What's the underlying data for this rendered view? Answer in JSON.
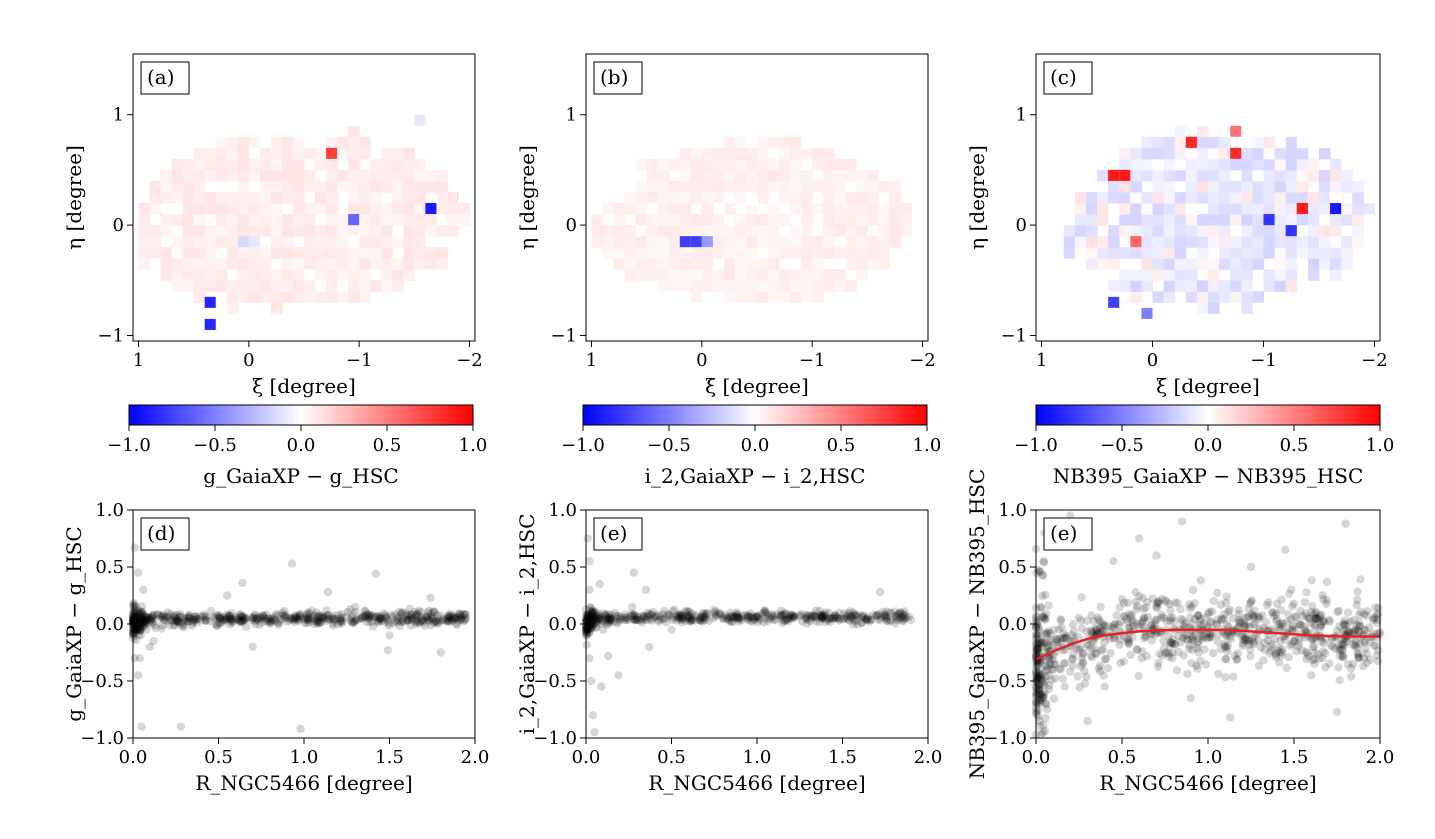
{
  "chart_data": [
    {
      "type": "heatmap",
      "panel_label": "(a)",
      "xlabel": "ξ [degree]",
      "ylabel": "η [degree]",
      "xlim": [
        1.05,
        -2.05
      ],
      "ylim": [
        -1.05,
        1.55
      ],
      "xticks": [
        "1",
        "0",
        "−1",
        "−2"
      ],
      "yticks": [
        "−1",
        "0",
        "1"
      ],
      "cell_size": 0.1,
      "background_tint": 0.07,
      "footprint": {
        "cx": -0.45,
        "cy": 0.05,
        "rx": 1.5,
        "ry": 0.8,
        "left_bulge": 0.3
      },
      "highlighted_cells": [
        {
          "xi": 0.35,
          "eta": -0.7,
          "value": -0.85
        },
        {
          "xi": 0.35,
          "eta": -0.9,
          "value": -0.85
        },
        {
          "xi": -0.75,
          "eta": 0.65,
          "value": 0.75
        },
        {
          "xi": -0.95,
          "eta": 0.05,
          "value": -0.6
        },
        {
          "xi": -1.65,
          "eta": 0.15,
          "value": -0.9
        },
        {
          "xi": 0.05,
          "eta": -0.15,
          "value": -0.15
        },
        {
          "xi": -0.05,
          "eta": -0.15,
          "value": -0.1
        },
        {
          "xi": -1.55,
          "eta": 0.95,
          "value": -0.1
        }
      ],
      "colorbar": {
        "label": "g_GaiaXP − g_HSC",
        "range": [
          -1.0,
          1.0
        ],
        "ticks": [
          "−1.0",
          "−0.5",
          "0.0",
          "0.5",
          "1.0"
        ]
      }
    },
    {
      "type": "heatmap",
      "panel_label": "(b)",
      "xlabel": "ξ [degree]",
      "ylabel": "η [degree]",
      "xlim": [
        1.05,
        -2.05
      ],
      "ylim": [
        -1.05,
        1.55
      ],
      "xticks": [
        "1",
        "0",
        "−1",
        "−2"
      ],
      "yticks": [
        "−1",
        "0",
        "1"
      ],
      "cell_size": 0.1,
      "background_tint": 0.06,
      "footprint": {
        "cx": -0.5,
        "cy": 0.05,
        "rx": 1.35,
        "ry": 0.75,
        "left_bulge": 0.25
      },
      "highlighted_cells": [
        {
          "xi": 0.15,
          "eta": -0.15,
          "value": -0.75
        },
        {
          "xi": 0.05,
          "eta": -0.15,
          "value": -0.75
        },
        {
          "xi": -0.05,
          "eta": -0.15,
          "value": -0.4
        }
      ],
      "colorbar": {
        "label": "i_2,GaiaXP − i_2,HSC",
        "range": [
          -1.0,
          1.0
        ],
        "ticks": [
          "−1.0",
          "−0.5",
          "0.0",
          "0.5",
          "1.0"
        ]
      }
    },
    {
      "type": "heatmap",
      "panel_label": "(c)",
      "xlabel": "ξ [degree]",
      "ylabel": "η [degree]",
      "xlim": [
        1.05,
        -2.05
      ],
      "ylim": [
        -1.05,
        1.55
      ],
      "xticks": [
        "1",
        "0",
        "−1",
        "−2"
      ],
      "yticks": [
        "−1",
        "0",
        "1"
      ],
      "cell_size": 0.1,
      "background_tint": -0.12,
      "footprint": {
        "cx": -0.6,
        "cy": 0.05,
        "rx": 1.35,
        "ry": 0.8,
        "left_bulge": 0.1
      },
      "highlighted_cells": [
        {
          "xi": 0.35,
          "eta": 0.45,
          "value": 0.9
        },
        {
          "xi": 0.25,
          "eta": 0.45,
          "value": 0.9
        },
        {
          "xi": -0.35,
          "eta": 0.75,
          "value": 0.85
        },
        {
          "xi": -0.75,
          "eta": 0.65,
          "value": 0.85
        },
        {
          "xi": -1.35,
          "eta": 0.15,
          "value": 0.9
        },
        {
          "xi": -1.65,
          "eta": 0.15,
          "value": -0.9
        },
        {
          "xi": -1.05,
          "eta": 0.05,
          "value": -0.8
        },
        {
          "xi": -1.25,
          "eta": -0.05,
          "value": -0.8
        },
        {
          "xi": 0.35,
          "eta": -0.7,
          "value": -0.75
        },
        {
          "xi": 0.15,
          "eta": -0.15,
          "value": 0.6
        },
        {
          "xi": 0.05,
          "eta": -0.8,
          "value": -0.5
        },
        {
          "xi": -0.75,
          "eta": 0.85,
          "value": 0.55
        }
      ],
      "colorbar": {
        "label": "NB395_GaiaXP − NB395_HSC",
        "range": [
          -1.0,
          1.0
        ],
        "ticks": [
          "−1.0",
          "−0.5",
          "0.0",
          "0.5",
          "1.0"
        ]
      }
    },
    {
      "type": "scatter",
      "panel_label": "(d)",
      "xlabel": "R_NGC5466 [degree]",
      "ylabel": "g_GaiaXP − g_HSC",
      "xlim": [
        0.0,
        2.0
      ],
      "ylim": [
        -1.0,
        1.0
      ],
      "xticks": [
        "0.0",
        "0.5",
        "1.0",
        "1.5",
        "2.0"
      ],
      "yticks": [
        "−1.0",
        "−0.5",
        "0.0",
        "0.5",
        "1.0"
      ],
      "trend": [
        [
          0.0,
          0.01
        ],
        [
          0.05,
          0.04
        ],
        [
          0.5,
          0.05
        ],
        [
          1.0,
          0.05
        ],
        [
          1.5,
          0.05
        ],
        [
          1.95,
          0.05
        ]
      ],
      "scatter_spread": 0.03,
      "n_points": 620,
      "x_max": 1.95,
      "outliers": [
        [
          0.01,
          0.67
        ],
        [
          0.03,
          0.45
        ],
        [
          0.01,
          -0.3
        ],
        [
          0.03,
          -0.45
        ],
        [
          0.06,
          0.3
        ],
        [
          0.05,
          -0.9
        ],
        [
          0.28,
          -0.9
        ],
        [
          0.98,
          -0.92
        ],
        [
          0.12,
          -0.15
        ],
        [
          0.93,
          0.53
        ],
        [
          0.64,
          0.36
        ],
        [
          0.55,
          0.25
        ],
        [
          1.42,
          0.44
        ],
        [
          1.49,
          -0.23
        ],
        [
          1.14,
          0.28
        ],
        [
          1.74,
          0.23
        ],
        [
          0.1,
          -0.2
        ],
        [
          0.04,
          -0.3
        ],
        [
          0.7,
          -0.2
        ],
        [
          1.5,
          -0.1
        ],
        [
          1.8,
          -0.25
        ],
        [
          0.52,
          0.05
        ],
        [
          1.3,
          0.15
        ]
      ]
    },
    {
      "type": "scatter",
      "panel_label": "(e)",
      "xlabel": "R_NGC5466 [degree]",
      "ylabel": "i_2,GaiaXP − i_2,HSC",
      "xlim": [
        0.0,
        2.0
      ],
      "ylim": [
        -1.0,
        1.0
      ],
      "xticks": [
        "0.0",
        "0.5",
        "1.0",
        "1.5",
        "2.0"
      ],
      "yticks": [
        "−1.0",
        "−0.5",
        "0.0",
        "0.5",
        "1.0"
      ],
      "trend": [
        [
          0.0,
          0.0
        ],
        [
          0.04,
          0.05
        ],
        [
          0.5,
          0.06
        ],
        [
          1.0,
          0.06
        ],
        [
          1.5,
          0.06
        ],
        [
          1.9,
          0.06
        ]
      ],
      "scatter_spread": 0.025,
      "n_points": 520,
      "x_max": 1.9,
      "outliers": [
        [
          0.01,
          0.75
        ],
        [
          0.02,
          0.55
        ],
        [
          0.02,
          0.3
        ],
        [
          0.02,
          -0.3
        ],
        [
          0.03,
          -0.5
        ],
        [
          0.05,
          -0.95
        ],
        [
          0.09,
          -0.55
        ],
        [
          0.1,
          -0.05
        ],
        [
          0.13,
          -0.28
        ],
        [
          0.19,
          -0.45
        ],
        [
          0.28,
          0.45
        ],
        [
          0.37,
          -0.2
        ],
        [
          0.27,
          0.15
        ],
        [
          1.72,
          0.28
        ],
        [
          1.05,
          0.1
        ],
        [
          1.4,
          0.1
        ],
        [
          0.08,
          0.35
        ],
        [
          0.35,
          0.3
        ],
        [
          0.5,
          -0.05
        ],
        [
          0.04,
          -0.8
        ]
      ]
    },
    {
      "type": "scatter",
      "panel_label": "(e)",
      "xlabel": "R_NGC5466 [degree]",
      "ylabel": "NB395_GaiaXP − NB395_HSC",
      "xlim": [
        0.0,
        2.0
      ],
      "ylim": [
        -1.0,
        1.0
      ],
      "xticks": [
        "0.0",
        "0.5",
        "1.0",
        "1.5",
        "2.0"
      ],
      "yticks": [
        "−1.0",
        "−0.5",
        "0.0",
        "0.5",
        "1.0"
      ],
      "trend": [
        [
          0.0,
          -0.33
        ],
        [
          0.1,
          -0.25
        ],
        [
          0.3,
          -0.15
        ],
        [
          0.5,
          -0.08
        ],
        [
          0.75,
          -0.05
        ],
        [
          1.0,
          -0.04
        ],
        [
          1.25,
          -0.07
        ],
        [
          1.5,
          -0.08
        ],
        [
          1.75,
          -0.1
        ],
        [
          2.0,
          -0.11
        ]
      ],
      "scatter_spread": 0.16,
      "n_points": 900,
      "x_max": 2.0,
      "outliers": [
        [
          0.3,
          -0.85
        ],
        [
          0.2,
          0.95
        ],
        [
          1.8,
          0.88
        ],
        [
          1.13,
          -0.82
        ],
        [
          1.75,
          -0.77
        ],
        [
          0.9,
          -0.65
        ],
        [
          0.45,
          0.55
        ],
        [
          0.7,
          0.6
        ],
        [
          0.6,
          0.75
        ],
        [
          1.45,
          0.65
        ],
        [
          1.25,
          0.5
        ],
        [
          0.02,
          -0.85
        ],
        [
          0.05,
          0.8
        ],
        [
          0.05,
          -0.6
        ],
        [
          0.4,
          -0.55
        ],
        [
          1.6,
          -0.45
        ],
        [
          0.85,
          0.9
        ]
      ],
      "fit_curve": {
        "color": "#e8202a",
        "points": [
          [
            0.0,
            -0.31
          ],
          [
            0.1,
            -0.24
          ],
          [
            0.2,
            -0.18
          ],
          [
            0.3,
            -0.13
          ],
          [
            0.4,
            -0.1
          ],
          [
            0.5,
            -0.08
          ],
          [
            0.6,
            -0.065
          ],
          [
            0.7,
            -0.057
          ],
          [
            0.8,
            -0.052
          ],
          [
            0.9,
            -0.05
          ],
          [
            1.0,
            -0.05
          ],
          [
            1.1,
            -0.052
          ],
          [
            1.2,
            -0.06
          ],
          [
            1.3,
            -0.07
          ],
          [
            1.4,
            -0.08
          ],
          [
            1.5,
            -0.09
          ],
          [
            1.6,
            -0.1
          ],
          [
            1.7,
            -0.105
          ],
          [
            1.8,
            -0.11
          ],
          [
            1.9,
            -0.11
          ],
          [
            2.0,
            -0.11
          ]
        ]
      }
    }
  ]
}
